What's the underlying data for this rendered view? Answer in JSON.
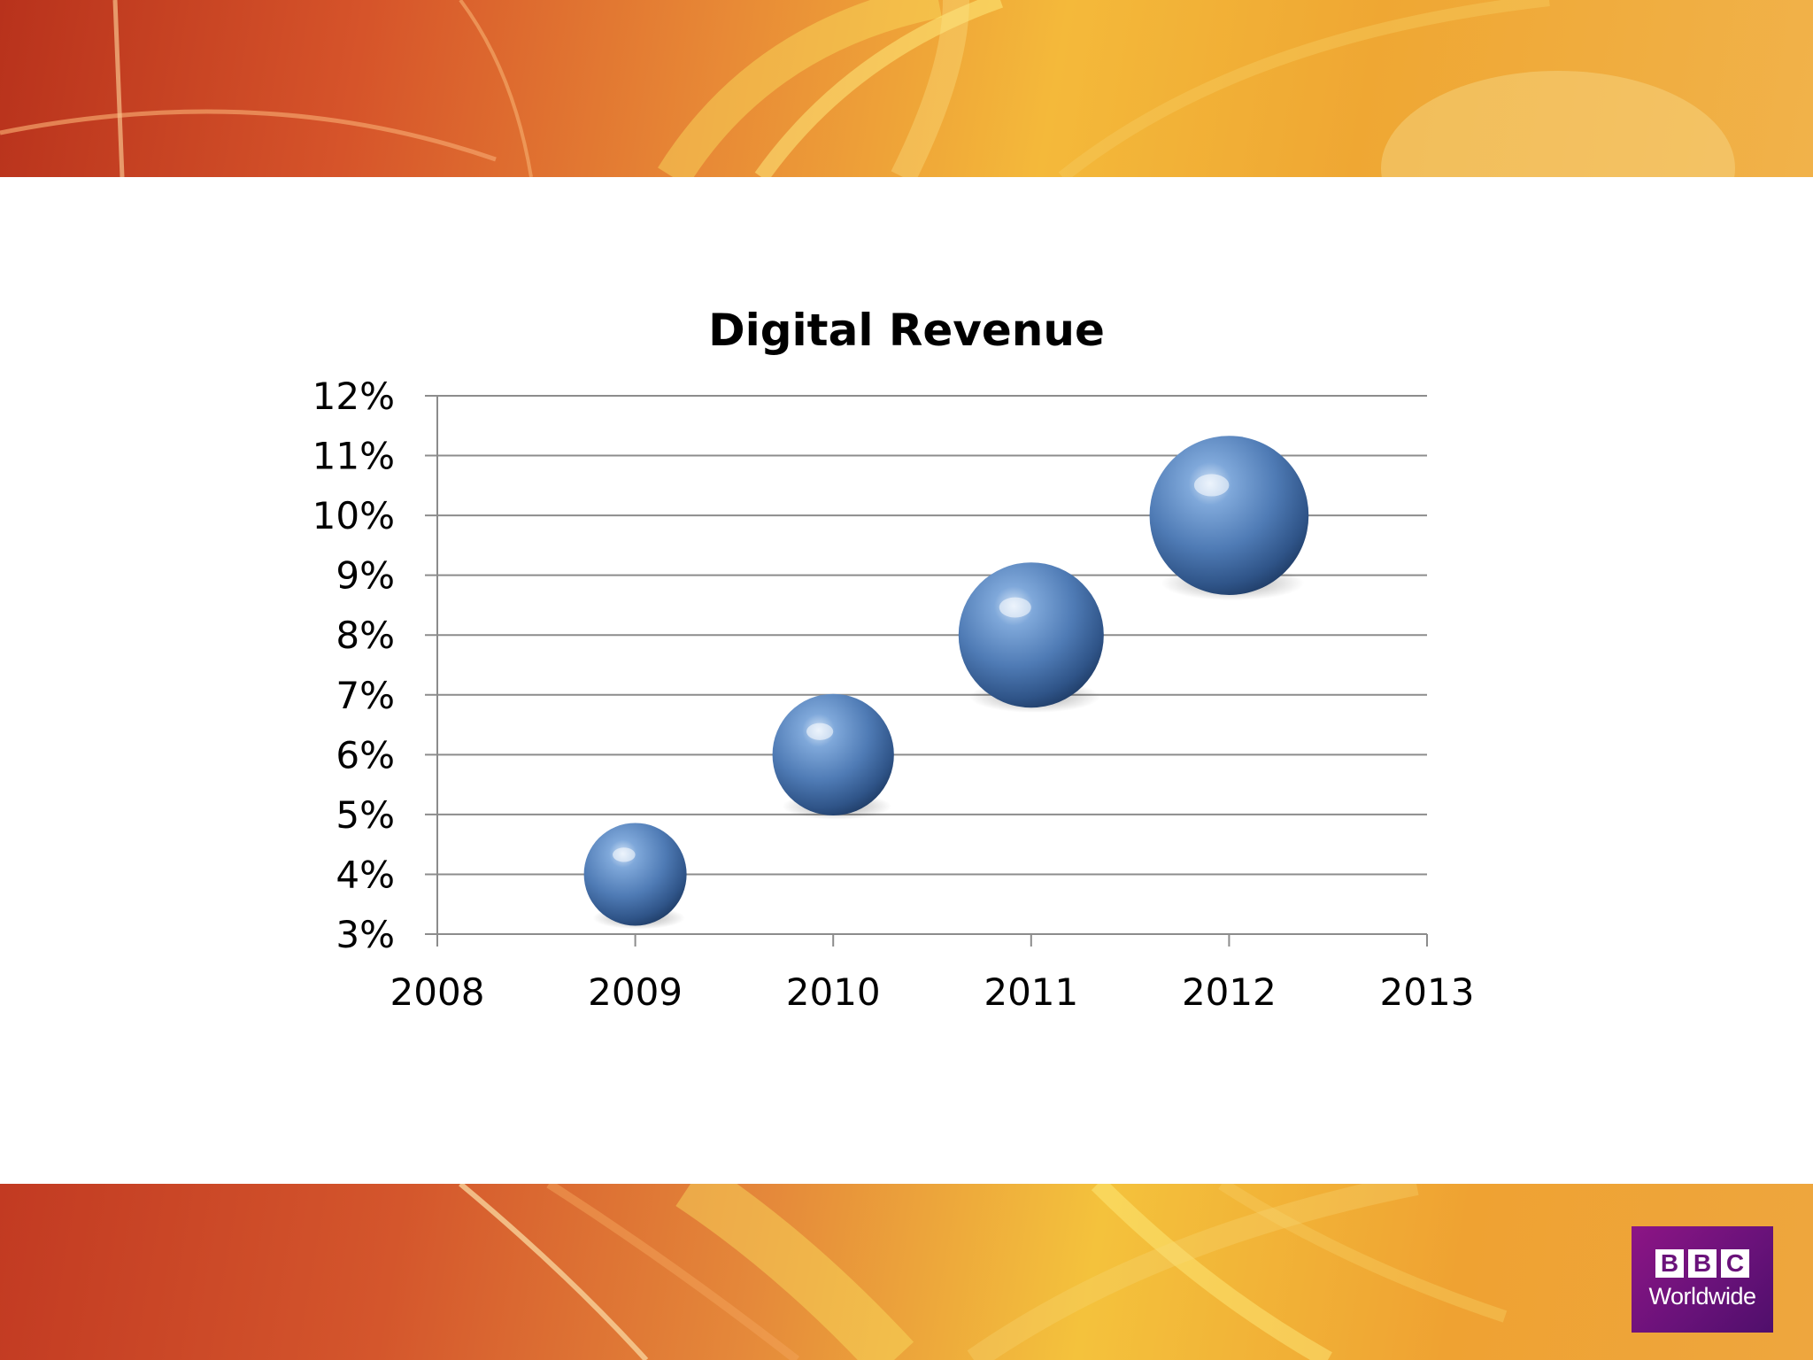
{
  "chart_data": {
    "type": "scatter",
    "title": "Digital Revenue",
    "xlabel": "",
    "ylabel": "",
    "x": [
      2009,
      2010,
      2011,
      2012
    ],
    "y": [
      4,
      6,
      8,
      10
    ],
    "bubble_size": [
      1,
      1.4,
      2.0,
      2.4
    ],
    "xlim": [
      2008,
      2013
    ],
    "ylim": [
      3,
      12
    ],
    "x_ticks": [
      "2008",
      "2009",
      "2010",
      "2011",
      "2012",
      "2013"
    ],
    "y_ticks": [
      "3%",
      "4%",
      "5%",
      "6%",
      "7%",
      "8%",
      "9%",
      "10%",
      "11%",
      "12%"
    ],
    "grid": true,
    "marker_color": "#4f7bb5"
  },
  "logo": {
    "blocks": [
      "B",
      "B",
      "C"
    ],
    "subtitle": "Worldwide"
  },
  "theme": {
    "band_red": "#c23a22",
    "band_orange": "#e88a36",
    "band_yellow": "#f4c23c"
  }
}
